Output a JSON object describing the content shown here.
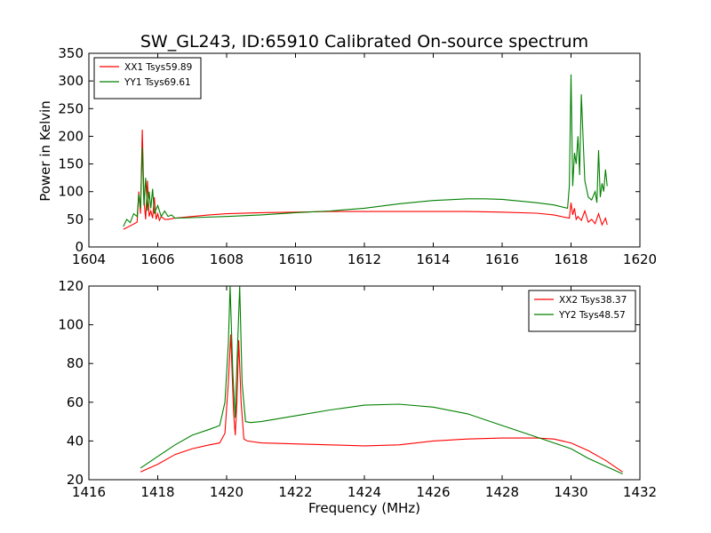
{
  "colors": {
    "xx": "#ff0000",
    "yy": "#008000"
  },
  "chart_data": [
    {
      "type": "line",
      "title": "SW_GL243, ID:65910 Calibrated On-source spectrum",
      "xlabel": "",
      "ylabel": "Power in Kelvin",
      "xlim": [
        1604,
        1620
      ],
      "ylim": [
        0,
        350
      ],
      "xticks": [
        "1604",
        "1606",
        "1608",
        "1610",
        "1612",
        "1614",
        "1616",
        "1618",
        "1620"
      ],
      "yticks": [
        "0",
        "50",
        "100",
        "150",
        "200",
        "250",
        "300",
        "350"
      ],
      "legend_position": "top-left",
      "series": [
        {
          "name": "XX1 Tsys59.89",
          "color": "#ff0000",
          "x": [
            1605.0,
            1605.2,
            1605.4,
            1605.45,
            1605.5,
            1605.55,
            1605.6,
            1605.65,
            1605.7,
            1605.75,
            1605.8,
            1605.85,
            1605.9,
            1605.95,
            1606.0,
            1606.05,
            1606.1,
            1606.2,
            1606.3,
            1606.5,
            1607.0,
            1607.5,
            1608.0,
            1609.0,
            1610.0,
            1611.0,
            1612.0,
            1613.0,
            1614.0,
            1615.0,
            1616.0,
            1617.0,
            1617.5,
            1617.95,
            1618.0,
            1618.05,
            1618.1,
            1618.15,
            1618.2,
            1618.3,
            1618.4,
            1618.5,
            1618.6,
            1618.7,
            1618.8,
            1618.9,
            1619.0,
            1619.05
          ],
          "y": [
            32,
            38,
            45,
            100,
            60,
            212,
            85,
            50,
            120,
            55,
            65,
            52,
            90,
            50,
            60,
            48,
            55,
            50,
            50,
            52,
            55,
            58,
            60,
            62,
            63,
            64,
            64,
            64,
            64,
            64,
            63,
            61,
            58,
            52,
            80,
            58,
            70,
            50,
            55,
            48,
            65,
            45,
            50,
            42,
            60,
            40,
            52,
            40
          ]
        },
        {
          "name": "YY1 Tsys69.61",
          "color": "#008000",
          "x": [
            1605.0,
            1605.1,
            1605.2,
            1605.3,
            1605.4,
            1605.45,
            1605.5,
            1605.55,
            1605.6,
            1605.65,
            1605.7,
            1605.75,
            1605.8,
            1605.85,
            1605.9,
            1606.0,
            1606.1,
            1606.2,
            1606.3,
            1606.4,
            1606.5,
            1607.0,
            1608.0,
            1609.0,
            1610.0,
            1611.0,
            1612.0,
            1613.0,
            1614.0,
            1615.0,
            1615.5,
            1616.0,
            1617.0,
            1617.5,
            1617.9,
            1617.95,
            1618.0,
            1618.05,
            1618.1,
            1618.15,
            1618.2,
            1618.25,
            1618.3,
            1618.4,
            1618.5,
            1618.6,
            1618.7,
            1618.75,
            1618.8,
            1618.85,
            1618.9,
            1618.95,
            1619.0,
            1619.05
          ],
          "y": [
            37,
            50,
            44,
            60,
            55,
            95,
            70,
            180,
            75,
            125,
            65,
            100,
            70,
            105,
            60,
            75,
            55,
            65,
            55,
            58,
            52,
            53,
            55,
            58,
            62,
            65,
            70,
            78,
            84,
            87,
            87,
            86,
            80,
            76,
            70,
            110,
            312,
            110,
            170,
            150,
            200,
            130,
            276,
            120,
            90,
            85,
            100,
            80,
            175,
            90,
            115,
            100,
            140,
            110
          ]
        }
      ]
    },
    {
      "type": "line",
      "title": "",
      "xlabel": "Frequency (MHz)",
      "ylabel": "",
      "xlim": [
        1416,
        1432
      ],
      "ylim": [
        20,
        120
      ],
      "xticks": [
        "1416",
        "1418",
        "1420",
        "1422",
        "1424",
        "1426",
        "1428",
        "1430",
        "1432"
      ],
      "yticks": [
        "20",
        "40",
        "60",
        "80",
        "100",
        "120"
      ],
      "legend_position": "top-right",
      "series": [
        {
          "name": "XX2 Tsys38.37",
          "color": "#ff0000",
          "x": [
            1417.5,
            1418.0,
            1418.5,
            1419.0,
            1419.5,
            1419.8,
            1419.95,
            1420.05,
            1420.12,
            1420.2,
            1420.25,
            1420.3,
            1420.35,
            1420.42,
            1420.5,
            1420.6,
            1421.0,
            1422.0,
            1423.0,
            1424.0,
            1425.0,
            1426.0,
            1427.0,
            1428.0,
            1429.0,
            1429.5,
            1430.0,
            1430.5,
            1431.0,
            1431.5
          ],
          "y": [
            24,
            28,
            33,
            36,
            38,
            39,
            44,
            70,
            95,
            55,
            43,
            60,
            92,
            60,
            41,
            40,
            39,
            38.5,
            38,
            37.5,
            38,
            40,
            41,
            41.5,
            41.5,
            41,
            39,
            35,
            30,
            24
          ]
        },
        {
          "name": "YY2 Tsys48.57",
          "color": "#008000",
          "x": [
            1417.5,
            1418.0,
            1418.5,
            1419.0,
            1419.5,
            1419.8,
            1419.95,
            1420.05,
            1420.1,
            1420.18,
            1420.25,
            1420.3,
            1420.38,
            1420.45,
            1420.55,
            1420.7,
            1421.0,
            1422.0,
            1423.0,
            1424.0,
            1425.0,
            1426.0,
            1427.0,
            1428.0,
            1429.0,
            1430.0,
            1430.5,
            1431.0,
            1431.5
          ],
          "y": [
            26,
            32,
            38,
            43,
            46,
            48,
            60,
            90,
            120,
            75,
            52,
            80,
            120,
            70,
            50,
            49.5,
            50,
            53,
            56,
            58.5,
            59,
            57.5,
            54,
            48,
            42,
            36,
            31,
            27,
            23
          ]
        }
      ]
    }
  ]
}
